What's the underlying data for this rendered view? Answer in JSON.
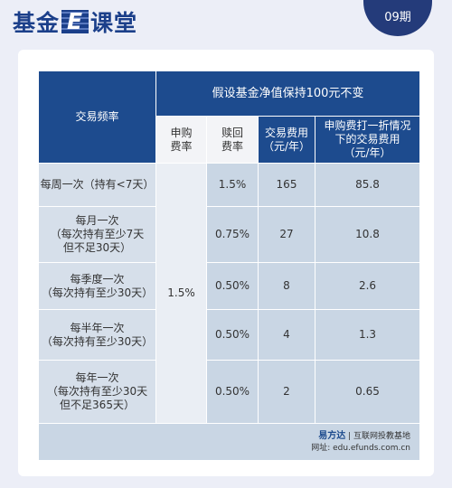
{
  "header": {
    "logo_prefix": "基金",
    "logo_e": "E",
    "logo_suffix": "课堂",
    "issue": "09期"
  },
  "table": {
    "header": {
      "frequency": "交易频率",
      "group": "假设基金净值保持100元不变",
      "columns": [
        [
          "申购",
          "费率"
        ],
        [
          "赎回",
          "费率"
        ],
        [
          "交易费用",
          "（元/年）"
        ],
        [
          "申购费打一折情况",
          "下的交易费用",
          "（元/年）"
        ]
      ]
    },
    "purchase_fee": "1.5%",
    "rows": [
      {
        "frequency": [
          "每周一次（持有<7天）"
        ],
        "redemption_fee": "1.5%",
        "cost": "165",
        "discounted_cost": "85.8"
      },
      {
        "frequency": [
          "每月一次",
          "（每次持有至少7天",
          "但不足30天）"
        ],
        "redemption_fee": "0.75%",
        "cost": "27",
        "discounted_cost": "10.8"
      },
      {
        "frequency": [
          "每季度一次",
          "（每次持有至少30天）"
        ],
        "redemption_fee": "0.50%",
        "cost": "8",
        "discounted_cost": "2.6"
      },
      {
        "frequency": [
          "每半年一次",
          "（每次持有至少30天）"
        ],
        "redemption_fee": "0.50%",
        "cost": "4",
        "discounted_cost": "1.3"
      },
      {
        "frequency": [
          "每年一次",
          "（每次持有至少30天",
          "但不足365天）"
        ],
        "redemption_fee": "0.50%",
        "cost": "2",
        "discounted_cost": "0.65"
      }
    ]
  },
  "footer": {
    "brand": "易方达",
    "tagline": "互联网投教基地",
    "url": "网址: edu.efunds.com.cn"
  }
}
